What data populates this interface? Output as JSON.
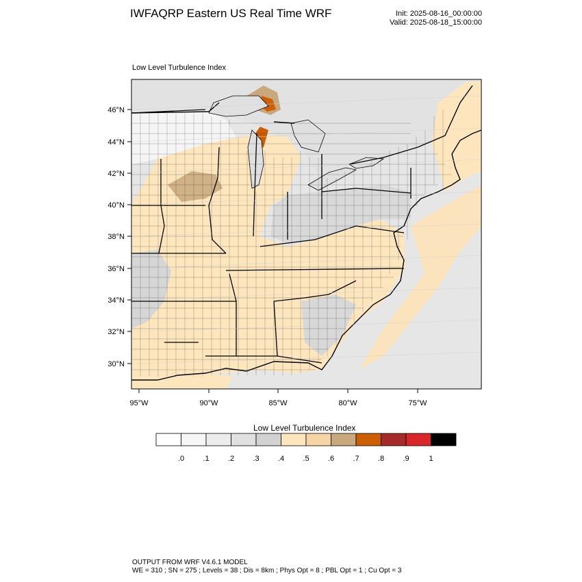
{
  "header": {
    "title": "IWFAQRP Eastern US Real Time WRF",
    "init": "Init: 2025-08-16_00:00:00",
    "valid": "Valid: 2025-08-18_15:00:00"
  },
  "map": {
    "subtitle": "Low Level Turbulence Index",
    "lat_ticks": [
      "46°N",
      "44°N",
      "42°N",
      "40°N",
      "38°N",
      "36°N",
      "34°N",
      "32°N",
      "30°N"
    ],
    "lon_ticks": [
      "95°W",
      "90°W",
      "85°W",
      "80°W",
      "75°W"
    ]
  },
  "colorbar": {
    "title": "Low Level Turbulence Index",
    "colors": [
      "#ffffff",
      "#f6f6f6",
      "#ececec",
      "#e0e0e0",
      "#d2d2d2",
      "#fde6be",
      "#f7d4a5",
      "#c9a87e",
      "#cc5f05",
      "#a52a2a",
      "#d8262a",
      "#000000"
    ],
    "labels": [
      ".0",
      ".1",
      ".2",
      ".3",
      ".4",
      ".5",
      ".6",
      ".7",
      ".8",
      ".9",
      "1"
    ]
  },
  "footer": {
    "line1": "OUTPUT FROM WRF V4.6.1 MODEL",
    "line2": "WE = 310 ; SN = 275 ; Levels = 38 ; Dis = 8km ; Phys Opt = 8 ; PBL Opt = 1 ; Cu Opt = 3"
  }
}
